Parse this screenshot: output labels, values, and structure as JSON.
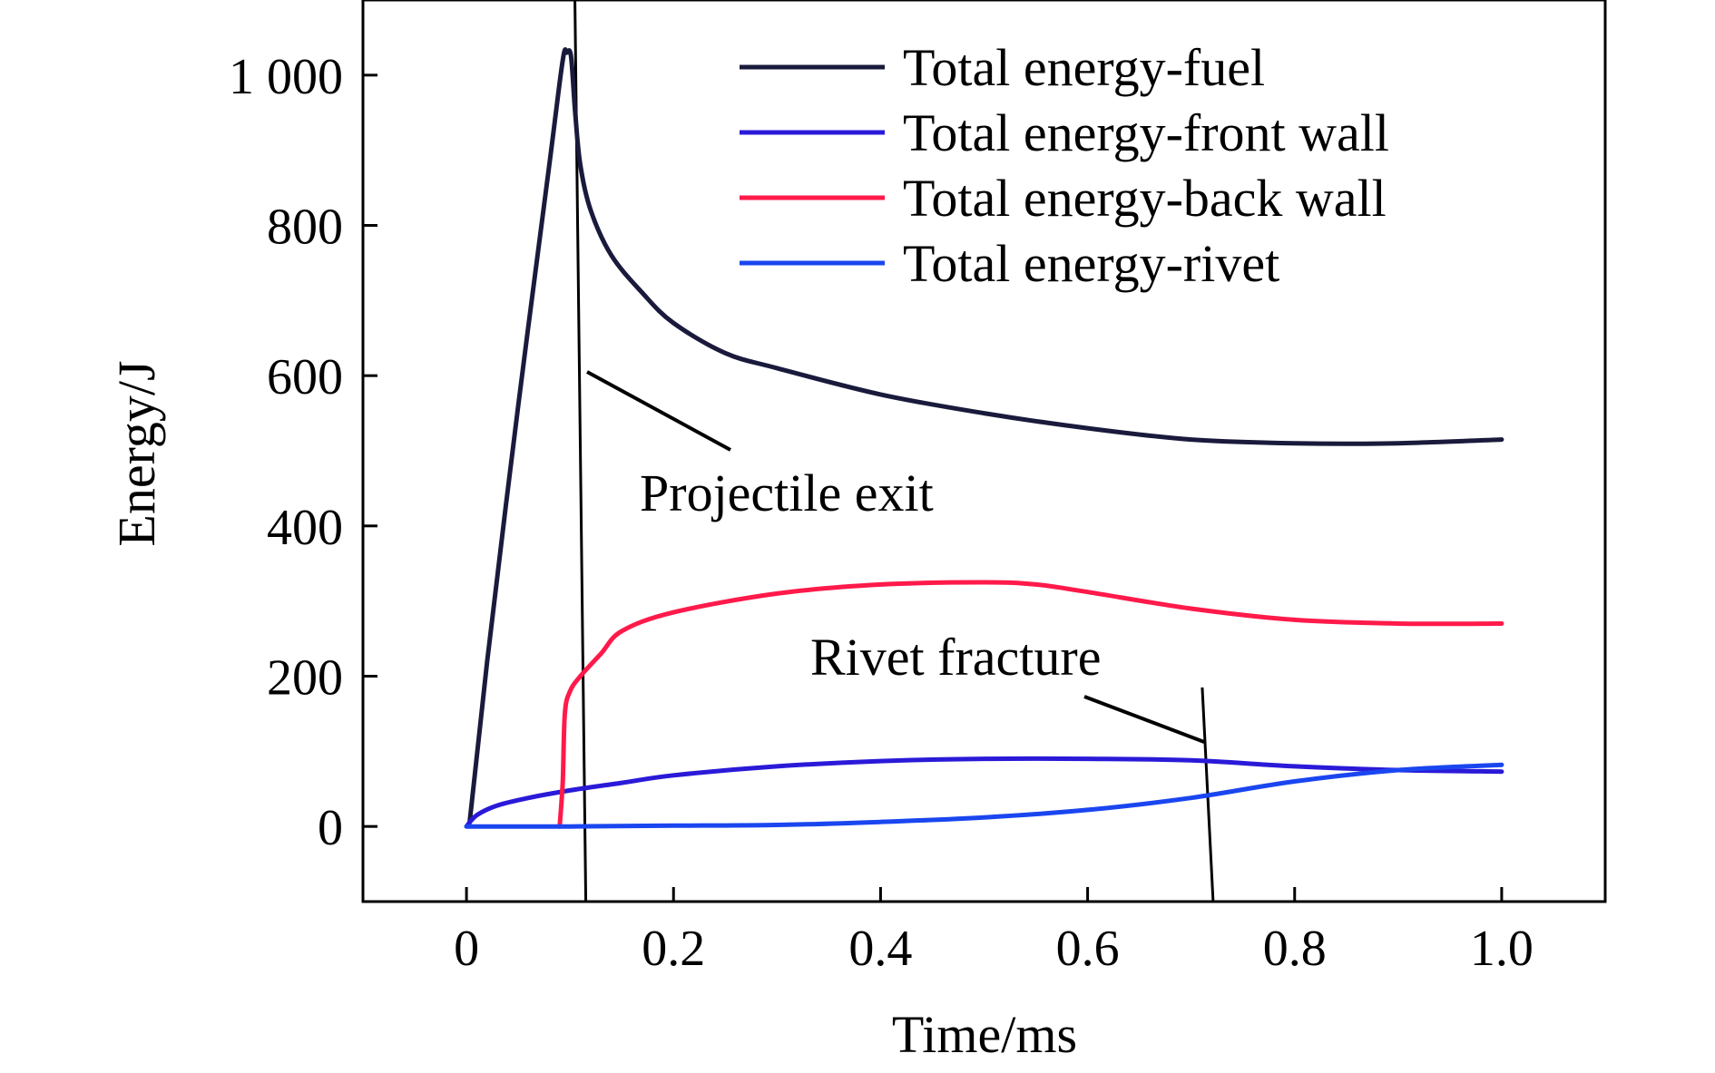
{
  "chart_data": {
    "type": "line",
    "title": "",
    "xlabel": "Time/ms",
    "ylabel": "Energy/J",
    "xlim": [
      -0.1,
      1.1
    ],
    "ylim": [
      -100,
      1100
    ],
    "xticks": [
      0,
      0.2,
      0.4,
      0.6,
      0.8,
      1.0
    ],
    "xtick_labels": [
      "0",
      "0.2",
      "0.4",
      "0.6",
      "0.8",
      "1.0"
    ],
    "yticks": [
      0,
      200,
      400,
      600,
      800,
      1000
    ],
    "ytick_labels": [
      "0",
      "200",
      "400",
      "600",
      "800",
      "1 000"
    ],
    "grid": false,
    "legend_position": "top-right",
    "series": [
      {
        "name": "Total energy-fuel",
        "color": "#1a1a3c",
        "x": [
          0.003,
          0.02,
          0.05,
          0.08,
          0.093,
          0.097,
          0.101,
          0.105,
          0.11,
          0.12,
          0.14,
          0.17,
          0.2,
          0.25,
          0.3,
          0.4,
          0.5,
          0.6,
          0.7,
          0.8,
          0.9,
          1.0
        ],
        "y": [
          5,
          220,
          560,
          880,
          1020,
          1030,
          1025,
          950,
          880,
          820,
          760,
          710,
          670,
          630,
          610,
          575,
          550,
          530,
          515,
          510,
          510,
          515
        ]
      },
      {
        "name": "Total energy-front wall",
        "color": "#2a1ad8",
        "x": [
          0.0,
          0.01,
          0.03,
          0.06,
          0.1,
          0.15,
          0.2,
          0.3,
          0.4,
          0.5,
          0.6,
          0.7,
          0.8,
          0.9,
          1.0
        ],
        "y": [
          0,
          15,
          28,
          38,
          48,
          58,
          68,
          80,
          87,
          90,
          90,
          88,
          80,
          75,
          73
        ]
      },
      {
        "name": "Total energy-back wall",
        "color": "#ff1a4a",
        "x": [
          0.09,
          0.093,
          0.095,
          0.1,
          0.11,
          0.13,
          0.15,
          0.2,
          0.3,
          0.4,
          0.5,
          0.55,
          0.6,
          0.7,
          0.8,
          0.9,
          1.0
        ],
        "y": [
          0,
          60,
          150,
          180,
          200,
          230,
          260,
          285,
          310,
          322,
          325,
          322,
          312,
          290,
          275,
          270,
          270
        ]
      },
      {
        "name": "Total energy-rivet",
        "color": "#1a46f0",
        "x": [
          0.0,
          0.1,
          0.2,
          0.3,
          0.4,
          0.5,
          0.6,
          0.7,
          0.8,
          0.9,
          1.0
        ],
        "y": [
          0,
          0,
          1,
          2,
          6,
          12,
          22,
          38,
          60,
          75,
          82
        ]
      }
    ],
    "annotations": [
      {
        "text": "Projectile exit",
        "marker_x": 0.11
      },
      {
        "text": "Rivet fracture",
        "marker_x": 0.716
      }
    ]
  }
}
